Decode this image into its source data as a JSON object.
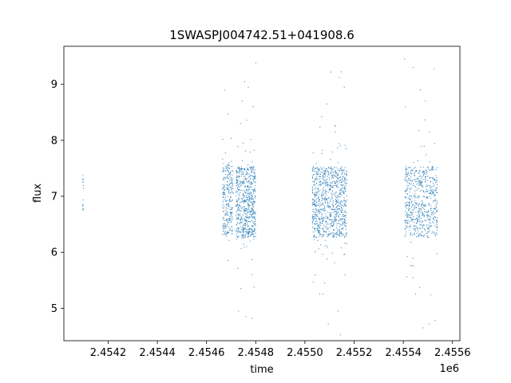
{
  "chart_data": {
    "type": "scatter",
    "title": "1SWASPJ004742.51+041908.6",
    "xlabel": "time",
    "ylabel": "flux",
    "x_offset_label": "1e6",
    "xlim": [
      2.45402,
      2.45563
    ],
    "ylim": [
      4.42,
      9.68
    ],
    "x_ticks": [
      2.4542,
      2.4544,
      2.4546,
      2.4548,
      2.455,
      2.4552,
      2.4554,
      2.4556
    ],
    "x_tick_labels": [
      "2.4542",
      "2.4544",
      "2.4546",
      "2.4548",
      "2.4550",
      "2.4552",
      "2.4554",
      "2.4556"
    ],
    "y_ticks": [
      5,
      6,
      7,
      8,
      9
    ],
    "y_tick_labels": [
      "5",
      "6",
      "7",
      "8",
      "9"
    ],
    "grid": false,
    "legend": "none",
    "marker_color": "#1f77b4",
    "series": [
      {
        "clusters": [
          {
            "x_range": [
              2.454095,
              2.4541
            ],
            "y_center": 7.0,
            "y_spread": 0.35,
            "n": 14
          },
          {
            "x_range": [
              2.454665,
              2.454708
            ],
            "y_center": 6.95,
            "y_spread": 0.55,
            "n": 260
          },
          {
            "x_range": [
              2.45472,
              2.4548
            ],
            "y_center": 6.9,
            "y_spread": 0.55,
            "n": 620
          },
          {
            "x_range": [
              2.45503,
              2.45517
            ],
            "y_center": 6.9,
            "y_spread": 0.55,
            "n": 900
          },
          {
            "x_range": [
              2.455405,
              2.45554
            ],
            "y_center": 6.9,
            "y_spread": 0.55,
            "n": 620
          }
        ],
        "outliers": [
          [
            2.454755,
            9.05
          ],
          [
            2.45477,
            8.95
          ],
          [
            2.454745,
            8.7
          ],
          [
            2.45479,
            8.6
          ],
          [
            2.4548,
            9.38
          ],
          [
            2.45473,
            4.95
          ],
          [
            2.45476,
            4.85
          ],
          [
            2.454785,
            4.82
          ],
          [
            2.45474,
            5.35
          ],
          [
            2.455105,
            9.22
          ],
          [
            2.45514,
            9.12
          ],
          [
            2.45516,
            8.95
          ],
          [
            2.45509,
            8.65
          ],
          [
            2.455125,
            8.25
          ],
          [
            2.455095,
            4.72
          ],
          [
            2.455135,
            4.95
          ],
          [
            2.45506,
            5.25
          ],
          [
            2.45508,
            5.45
          ],
          [
            2.455405,
            9.45
          ],
          [
            2.45544,
            9.3
          ],
          [
            2.45547,
            8.9
          ],
          [
            2.45549,
            8.7
          ],
          [
            2.455525,
            9.28
          ],
          [
            2.45548,
            4.65
          ],
          [
            2.455505,
            4.72
          ],
          [
            2.45553,
            4.78
          ],
          [
            2.45545,
            5.25
          ]
        ]
      }
    ]
  }
}
